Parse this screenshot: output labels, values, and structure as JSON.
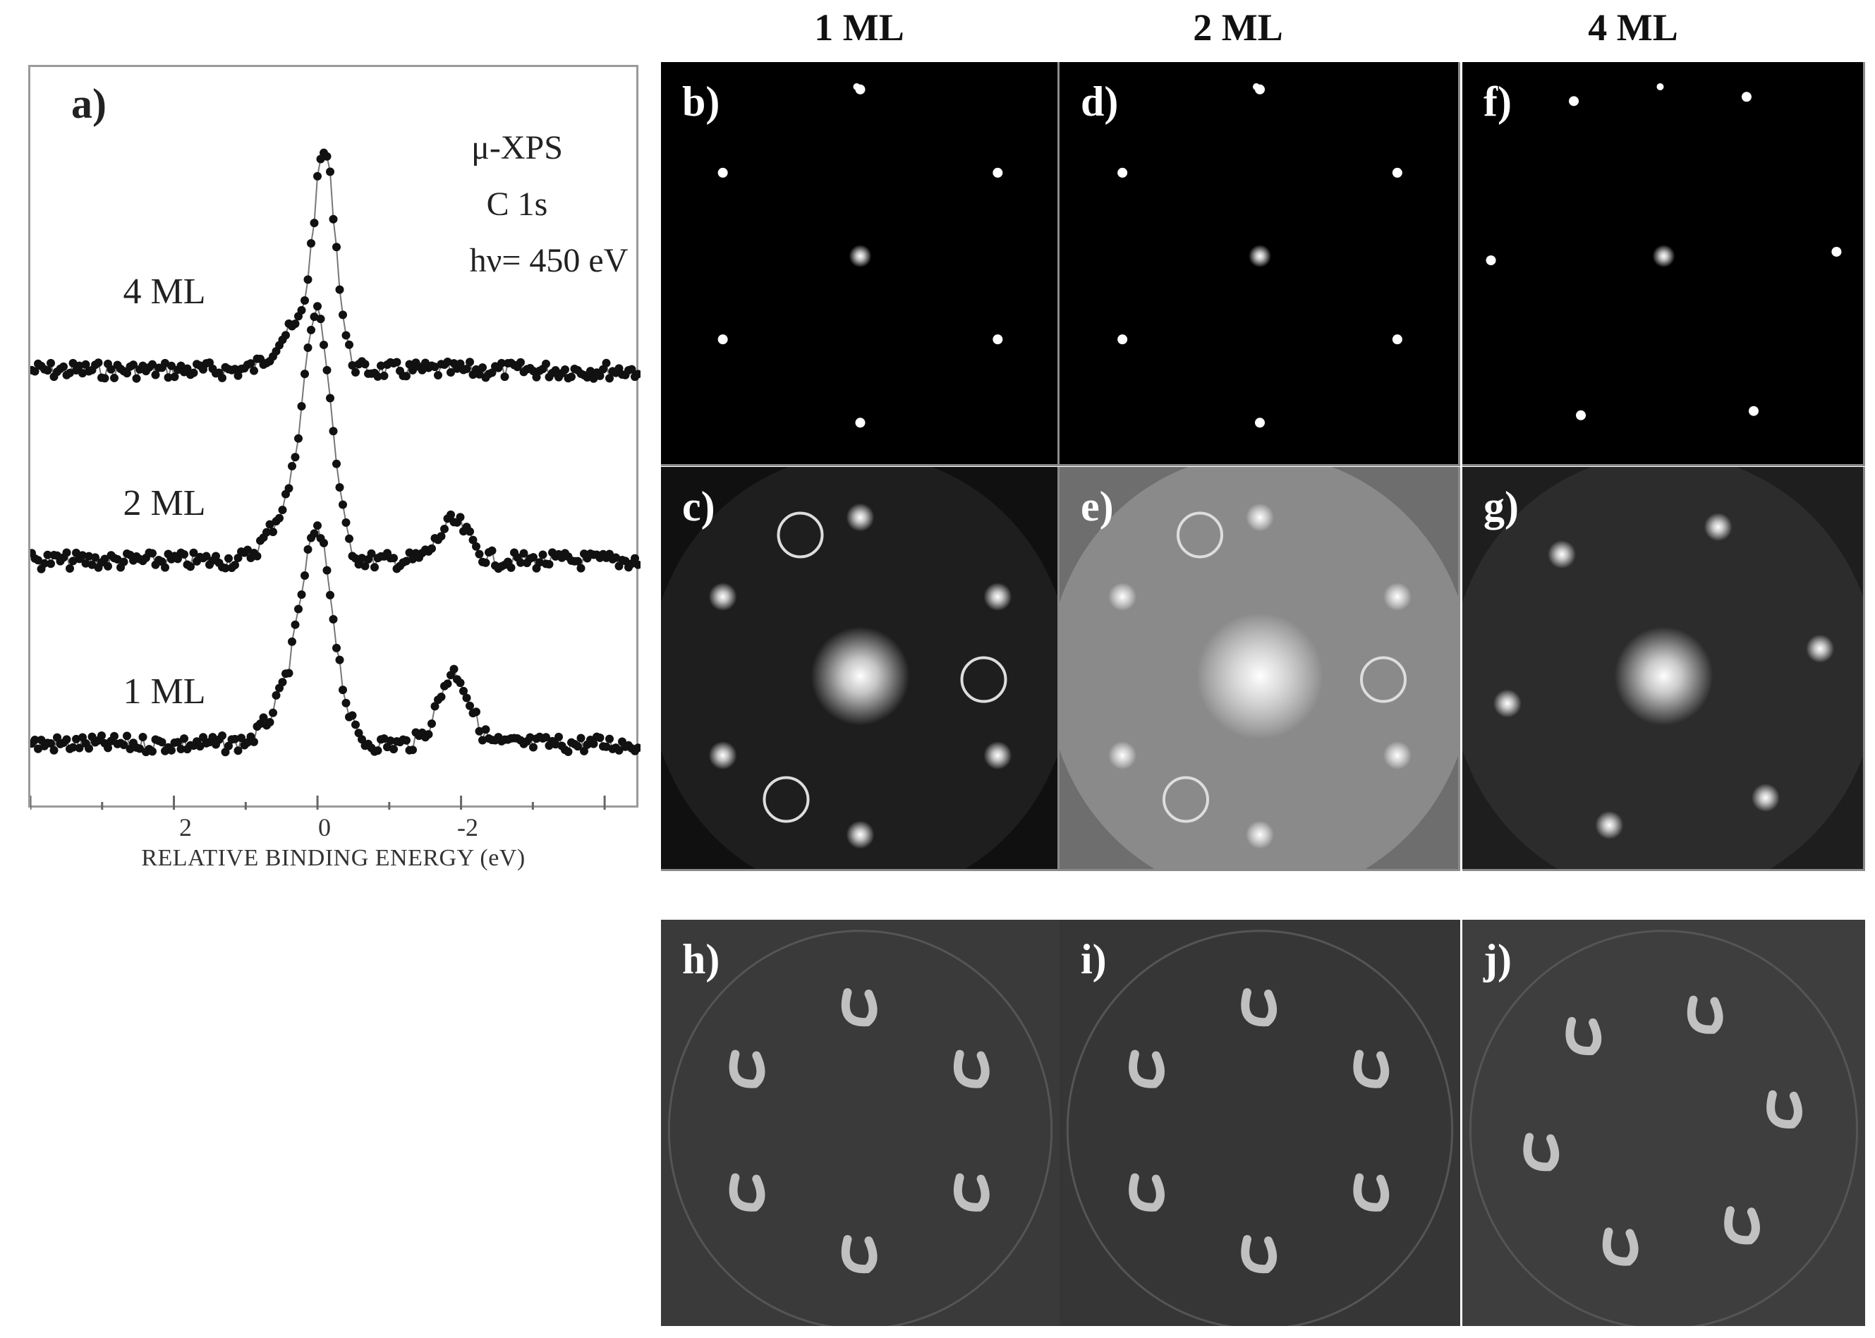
{
  "column_titles": [
    "1 ML",
    "2 ML",
    "4 ML"
  ],
  "panel_a": {
    "letter": "a)",
    "annotation_lines": [
      "μ-XPS",
      "C 1s",
      "hν= 450 eV"
    ],
    "curve_labels": [
      "4 ML",
      "2 ML",
      "1 ML"
    ],
    "xlabel": "RELATIVE BINDING ENERGY (eV)",
    "x_ticks": [
      "2",
      "0",
      "-2"
    ]
  },
  "image_panels": [
    {
      "letter": "b)"
    },
    {
      "letter": "d)"
    },
    {
      "letter": "f)"
    },
    {
      "letter": "c)"
    },
    {
      "letter": "e)"
    },
    {
      "letter": "g)"
    },
    {
      "letter": "h)"
    },
    {
      "letter": "i)"
    },
    {
      "letter": "j)"
    }
  ],
  "chart_data": {
    "type": "line",
    "xlabel": "RELATIVE BINDING ENERGY (eV)",
    "x_reversed": true,
    "xlim": [
      4,
      -4.5
    ],
    "x_ticks": [
      2,
      0,
      -2
    ],
    "series": [
      {
        "name": "4 ML",
        "peaks": [
          {
            "x": -0.1,
            "height": 1.0
          }
        ]
      },
      {
        "name": "2 ML",
        "peaks": [
          {
            "x": 0.0,
            "height": 1.0
          },
          {
            "x": -1.9,
            "height": 0.16
          }
        ]
      },
      {
        "name": "1 ML",
        "peaks": [
          {
            "x": 0.0,
            "height": 1.0
          },
          {
            "x": -1.9,
            "height": 0.35
          }
        ]
      }
    ]
  }
}
